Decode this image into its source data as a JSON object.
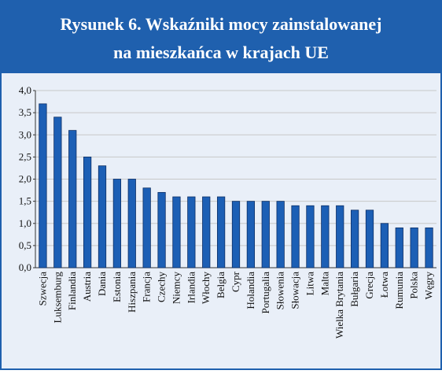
{
  "chart_data": {
    "type": "bar",
    "title": [
      "Rysunek 6. Wskaźniki mocy zainstalowanej",
      "na mieszkańca w krajach UE"
    ],
    "categories": [
      "Szwecja",
      "Luksemburg",
      "Finlandia",
      "Austria",
      "Dania",
      "Estonia",
      "Hiszpania",
      "Francja",
      "Czechy",
      "Niemcy",
      "Irlandia",
      "Włochy",
      "Belgia",
      "Cypr",
      "Holandia",
      "Portugalia",
      "Słowenia",
      "Słowacja",
      "Litwa",
      "Malta",
      "Wielka Brytania",
      "Bułgaria",
      "Grecja",
      "Łotwa",
      "Rumunia",
      "Polska",
      "Węgry"
    ],
    "values": [
      3.7,
      3.4,
      3.1,
      2.5,
      2.3,
      2.0,
      2.0,
      1.8,
      1.7,
      1.6,
      1.6,
      1.6,
      1.6,
      1.5,
      1.5,
      1.5,
      1.5,
      1.4,
      1.4,
      1.4,
      1.4,
      1.3,
      1.3,
      1.0,
      0.9,
      0.9,
      0.9
    ],
    "color": "#1c5fb5",
    "ylim": [
      0,
      4
    ],
    "yticks": [
      {
        "value": 0,
        "label": "0,0"
      },
      {
        "value": 0.5,
        "label": "0,5"
      },
      {
        "value": 1,
        "label": "1,0"
      },
      {
        "value": 1.5,
        "label": "1,5"
      },
      {
        "value": 2,
        "label": "2,0"
      },
      {
        "value": 2.5,
        "label": "2,5"
      },
      {
        "value": 3,
        "label": "3,0"
      },
      {
        "value": 3.5,
        "label": "3,5"
      },
      {
        "value": 4,
        "label": "4,0"
      }
    ],
    "grid": true
  }
}
